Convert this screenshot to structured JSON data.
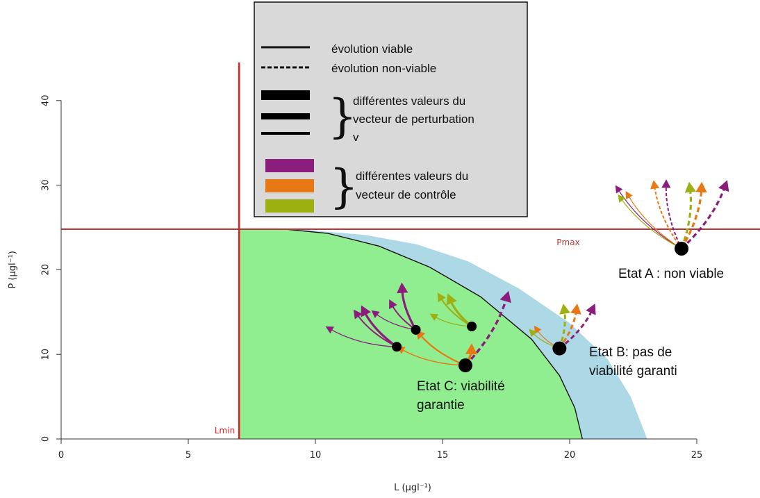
{
  "chart_data": {
    "type": "line",
    "xlabel": "L (µgl⁻¹)",
    "ylabel": "P (µgl⁻¹)",
    "xlim": [
      0,
      25
    ],
    "ylim": [
      0,
      40
    ],
    "x_ticks": [
      "0",
      "5",
      "10",
      "15",
      "20",
      "25"
    ],
    "y_ticks": [
      "0",
      "10",
      "20",
      "30",
      "40"
    ],
    "thresholds": {
      "Lmin": {
        "label": "Lmin",
        "value": 7,
        "color": "#e02020"
      },
      "Pmax": {
        "label": "Pmax",
        "value": 24.8,
        "color": "#b03a3a"
      }
    },
    "regions": [
      {
        "name": "blue-region",
        "color": "#add8e6",
        "boundary": [
          [
            7,
            24.8
          ],
          [
            9.3,
            24.8
          ],
          [
            12,
            24.1
          ],
          [
            14,
            23
          ],
          [
            16,
            21
          ],
          [
            18,
            17.8
          ],
          [
            20,
            13.7
          ],
          [
            21.5,
            9.4
          ],
          [
            22.4,
            5
          ],
          [
            23.05,
            0
          ],
          [
            7,
            0
          ]
        ]
      },
      {
        "name": "green-region",
        "color": "#90ee90",
        "boundary": [
          [
            7,
            24.8
          ],
          [
            8.8,
            24.8
          ],
          [
            10.5,
            24.3
          ],
          [
            12.5,
            22.8
          ],
          [
            14.5,
            20.3
          ],
          [
            16.5,
            16.8
          ],
          [
            18.5,
            11.8
          ],
          [
            19.6,
            7.5
          ],
          [
            20.2,
            3.7
          ],
          [
            20.5,
            0
          ],
          [
            7,
            0
          ]
        ]
      }
    ],
    "points": [
      {
        "label": "Etat A : non viable",
        "x": 24.4,
        "y": 22.5,
        "size": "large"
      },
      {
        "label": "Etat B: pas de viabilité garanti",
        "x": 19.6,
        "y": 10.7,
        "size": "large"
      },
      {
        "label": "Etat C: viabilité garantie",
        "x": 15.9,
        "y": 8.7,
        "size": "large"
      },
      {
        "label": "",
        "x": 13.2,
        "y": 10.9,
        "size": "small"
      },
      {
        "label": "",
        "x": 13.95,
        "y": 12.9,
        "size": "small"
      },
      {
        "label": "",
        "x": 16.15,
        "y": 13.3,
        "size": "small"
      }
    ],
    "trajectories": [
      {
        "from": [
          15.9,
          8.7
        ],
        "to": [
          13.2,
          10.9
        ],
        "color": "#e87814",
        "width": 1.4,
        "dash": false
      },
      {
        "from": [
          15.9,
          8.7
        ],
        "to": [
          13.95,
          12.9
        ],
        "color": "#e87814",
        "width": 2.2,
        "dash": false
      },
      {
        "from": [
          15.9,
          8.7
        ],
        "to": [
          16.15,
          11.3
        ],
        "color": "#e87814",
        "width": 3.4,
        "dash": false
      },
      {
        "from": [
          15.9,
          8.7
        ],
        "to": [
          17.6,
          17.5
        ],
        "color": "#8b1e7c",
        "width": 3.4,
        "dash": true
      },
      {
        "from": [
          13.2,
          10.9
        ],
        "to": [
          10.4,
          13.3
        ],
        "color": "#8b1e7c",
        "width": 1.3,
        "dash": false
      },
      {
        "from": [
          13.2,
          10.9
        ],
        "to": [
          11.5,
          15.3
        ],
        "color": "#8b1e7c",
        "width": 2.0,
        "dash": false
      },
      {
        "from": [
          13.2,
          10.9
        ],
        "to": [
          11.8,
          15.8
        ],
        "color": "#8b1e7c",
        "width": 3.2,
        "dash": false
      },
      {
        "from": [
          13.95,
          12.9
        ],
        "to": [
          12.2,
          15.2
        ],
        "color": "#8b1e7c",
        "width": 1.3,
        "dash": false
      },
      {
        "from": [
          13.95,
          12.9
        ],
        "to": [
          12.9,
          16.5
        ],
        "color": "#8b1e7c",
        "width": 2.0,
        "dash": false
      },
      {
        "from": [
          13.95,
          12.9
        ],
        "to": [
          13.4,
          18.5
        ],
        "color": "#8b1e7c",
        "width": 3.2,
        "dash": false
      },
      {
        "from": [
          16.15,
          13.3
        ],
        "to": [
          14.5,
          14.8
        ],
        "color": "#9cb012",
        "width": 1.3,
        "dash": false
      },
      {
        "from": [
          16.15,
          13.3
        ],
        "to": [
          14.8,
          17.3
        ],
        "color": "#9cb012",
        "width": 2.0,
        "dash": false
      },
      {
        "from": [
          16.15,
          13.3
        ],
        "to": [
          15.2,
          17.2
        ],
        "color": "#9cb012",
        "width": 3.2,
        "dash": false
      },
      {
        "from": [
          19.6,
          10.7
        ],
        "to": [
          18.6,
          13.4
        ],
        "color": "#e87814",
        "width": 1.2,
        "dash": false
      },
      {
        "from": [
          19.6,
          10.7
        ],
        "to": [
          18.4,
          13.0
        ],
        "color": "#9cb012",
        "width": 1.2,
        "dash": false
      },
      {
        "from": [
          19.6,
          10.7
        ],
        "to": [
          19.75,
          16.0
        ],
        "color": "#9cb012",
        "width": 3.0,
        "dash": true
      },
      {
        "from": [
          19.6,
          10.7
        ],
        "to": [
          20.3,
          16.0
        ],
        "color": "#e87814",
        "width": 3.0,
        "dash": true
      },
      {
        "from": [
          19.6,
          10.7
        ],
        "to": [
          21.0,
          16.0
        ],
        "color": "#8b1e7c",
        "width": 3.0,
        "dash": true
      },
      {
        "from": [
          24.4,
          22.5
        ],
        "to": [
          21.8,
          30.0
        ],
        "color": "#8b1e7c",
        "width": 1.2,
        "dash": false
      },
      {
        "from": [
          24.4,
          22.5
        ],
        "to": [
          21.9,
          28.9
        ],
        "color": "#9cb012",
        "width": 1.2,
        "dash": false
      },
      {
        "from": [
          24.4,
          22.5
        ],
        "to": [
          22.2,
          29.3
        ],
        "color": "#e87814",
        "width": 1.2,
        "dash": false
      },
      {
        "from": [
          24.4,
          22.5
        ],
        "to": [
          23.3,
          30.6
        ],
        "color": "#e87814",
        "width": 2.0,
        "dash": true
      },
      {
        "from": [
          24.4,
          22.5
        ],
        "to": [
          23.8,
          30.7
        ],
        "color": "#8b1e7c",
        "width": 2.0,
        "dash": true
      },
      {
        "from": [
          24.4,
          22.5
        ],
        "to": [
          24.7,
          30.4
        ],
        "color": "#9cb012",
        "width": 3.2,
        "dash": true
      },
      {
        "from": [
          24.4,
          22.5
        ],
        "to": [
          25.2,
          30.4
        ],
        "color": "#e87814",
        "width": 3.2,
        "dash": true
      },
      {
        "from": [
          24.4,
          22.5
        ],
        "to": [
          26.2,
          30.6
        ],
        "color": "#8b1e7c",
        "width": 3.2,
        "dash": true
      }
    ]
  },
  "legend": {
    "line_viable": "évolution viable",
    "line_nonviable": "évolution non-viable",
    "perturbation": [
      "différentes valeurs du",
      "vecteur de perturbation",
      "v"
    ],
    "control": [
      "différentes valeurs du",
      "vecteur de contrôle"
    ],
    "control_colors": [
      "#8b1e7c",
      "#e87814",
      "#9cb012"
    ],
    "background": "#d9d9d9"
  }
}
